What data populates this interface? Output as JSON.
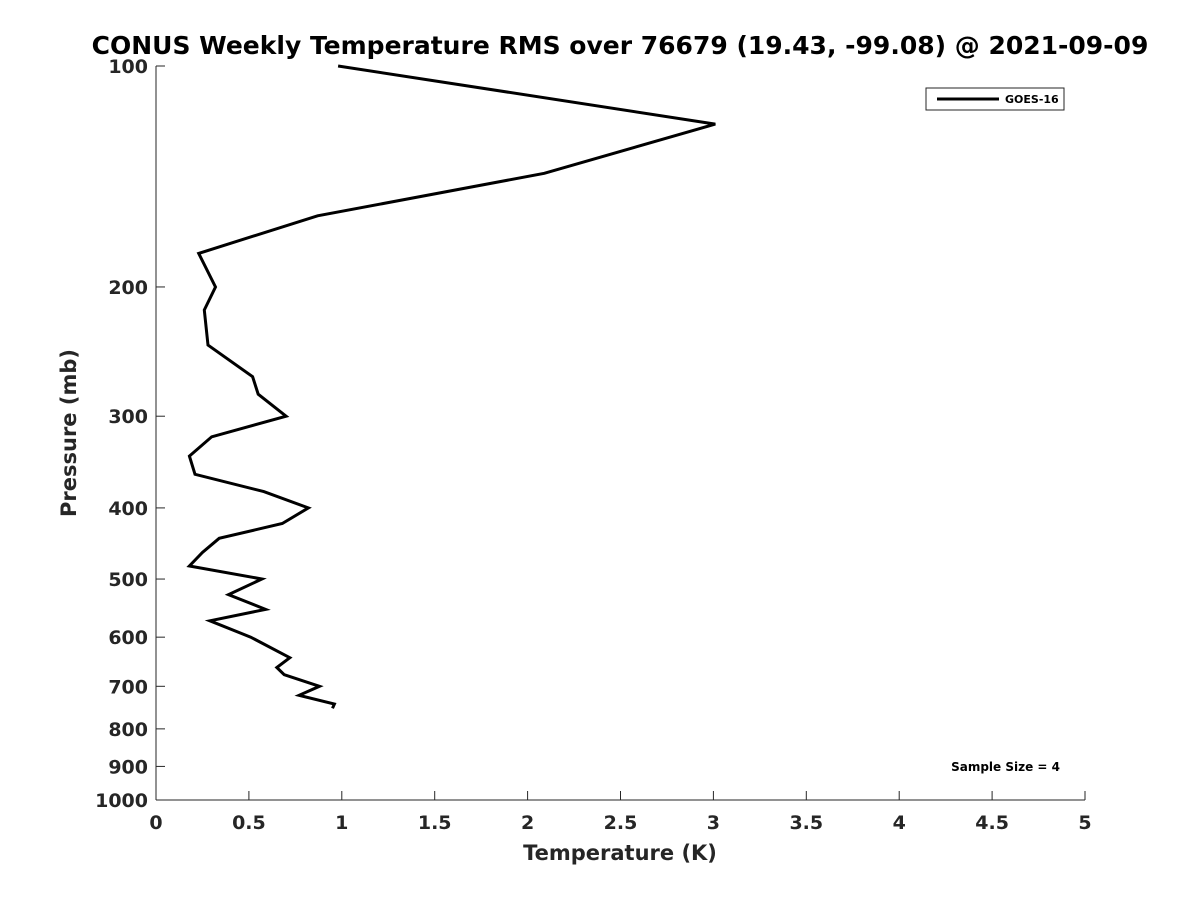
{
  "chart_data": {
    "type": "line",
    "title": "CONUS Weekly Temperature RMS over 76679 (19.43, -99.08) @ 2021-09-09",
    "xlabel": "Temperature (K)",
    "ylabel": "Pressure (mb)",
    "xlim": [
      0,
      5
    ],
    "ylim": [
      100,
      1000
    ],
    "y_scale": "log",
    "y_reversed": true,
    "grid": false,
    "legend_position": "top-right",
    "x_ticks": [
      "0",
      "0.5",
      "1",
      "1.5",
      "2",
      "2.5",
      "3",
      "3.5",
      "4",
      "4.5",
      "5"
    ],
    "y_ticks": [
      "100",
      "200",
      "300",
      "400",
      "500",
      "600",
      "700",
      "800",
      "900",
      "1000"
    ],
    "series": [
      {
        "name": "GOES-16",
        "color": "#000000",
        "points": [
          [
            0.98,
            100
          ],
          [
            3.01,
            120
          ],
          [
            2.09,
            140
          ],
          [
            0.87,
            160
          ],
          [
            0.23,
            180
          ],
          [
            0.32,
            200
          ],
          [
            0.26,
            215
          ],
          [
            0.28,
            240
          ],
          [
            0.52,
            265
          ],
          [
            0.55,
            280
          ],
          [
            0.7,
            300
          ],
          [
            0.3,
            320
          ],
          [
            0.18,
            340
          ],
          [
            0.21,
            360
          ],
          [
            0.58,
            380
          ],
          [
            0.82,
            400
          ],
          [
            0.68,
            420
          ],
          [
            0.34,
            440
          ],
          [
            0.25,
            460
          ],
          [
            0.18,
            480
          ],
          [
            0.57,
            500
          ],
          [
            0.39,
            525
          ],
          [
            0.59,
            550
          ],
          [
            0.29,
            570
          ],
          [
            0.51,
            600
          ],
          [
            0.72,
            640
          ],
          [
            0.65,
            660
          ],
          [
            0.69,
            675
          ],
          [
            0.88,
            700
          ],
          [
            0.77,
            720
          ],
          [
            0.96,
            740
          ],
          [
            0.95,
            750
          ]
        ]
      }
    ],
    "annotation": "Sample Size = 4"
  }
}
